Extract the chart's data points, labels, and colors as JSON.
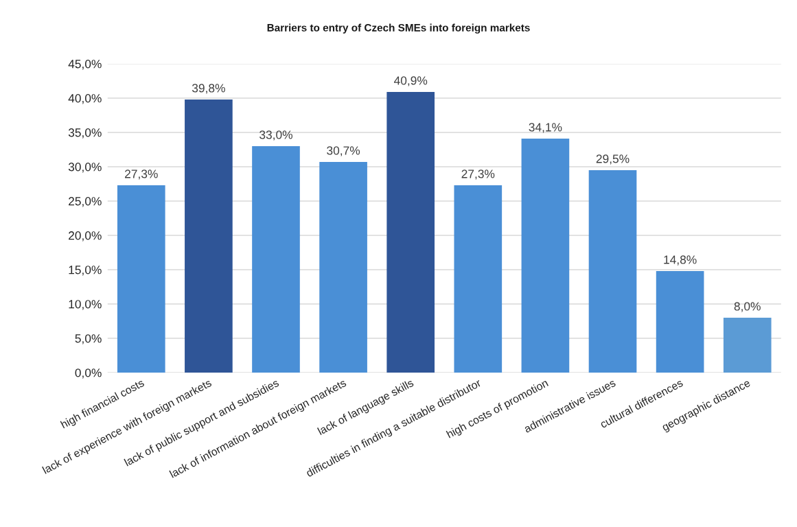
{
  "chart_data": {
    "type": "bar",
    "title": "Barriers to entry of Czech SMEs into foreign markets",
    "categories": [
      "high financial costs",
      "lack of experience with foreign markets",
      "lack of public support and subsidies",
      "lack of information about foreign markets",
      "lack of language skills",
      "difficulties in finding a suitable distributor",
      "high costs of promotion",
      "administrative issues",
      "cultural differences",
      "geographic distance"
    ],
    "values": [
      27.3,
      39.8,
      33.0,
      30.7,
      40.9,
      27.3,
      34.1,
      29.5,
      14.8,
      8.0
    ],
    "colors": [
      "#4a8fd6",
      "#2f5597",
      "#4a8fd6",
      "#4a8fd6",
      "#2f5597",
      "#4a8fd6",
      "#4a8fd6",
      "#4a8fd6",
      "#4a8fd6",
      "#5b9bd5"
    ],
    "value_labels": [
      "27,3%",
      "39,8%",
      "33,0%",
      "30,7%",
      "40,9%",
      "27,3%",
      "34,1%",
      "29,5%",
      "14,8%",
      "8,0%"
    ],
    "ylim": [
      0,
      45
    ],
    "yticks": [
      {
        "value": 0,
        "label": "0,0%"
      },
      {
        "value": 5,
        "label": "5,0%"
      },
      {
        "value": 10,
        "label": "10,0%"
      },
      {
        "value": 15,
        "label": "15,0%"
      },
      {
        "value": 20,
        "label": "20,0%"
      },
      {
        "value": 25,
        "label": "25,0%"
      },
      {
        "value": 30,
        "label": "30,0%"
      },
      {
        "value": 35,
        "label": "35,0%"
      },
      {
        "value": 40,
        "label": "40,0%"
      },
      {
        "value": 45,
        "label": "45,0%"
      }
    ],
    "grid": "y",
    "legend": false
  }
}
